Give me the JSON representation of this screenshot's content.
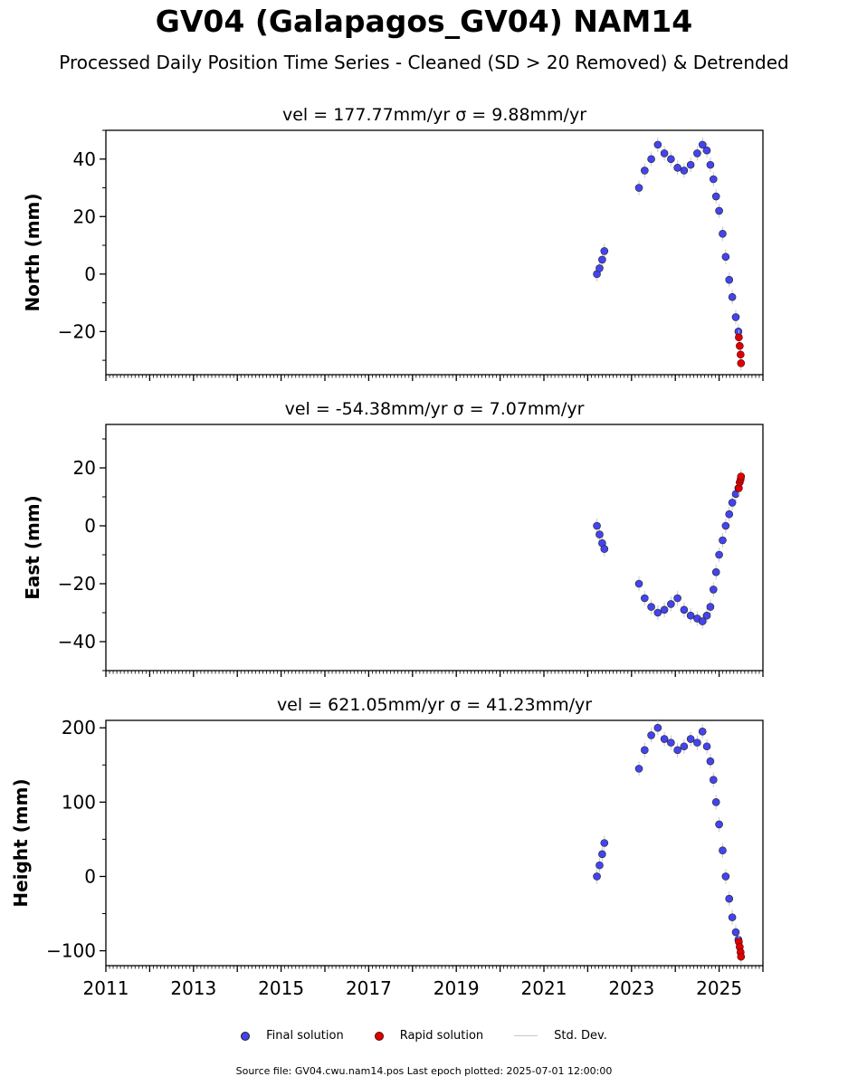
{
  "header": {
    "title": "GV04 (Galapagos_GV04) NAM14",
    "subtitle": "Processed Daily Position Time Series - Cleaned (SD > 20 Removed) & Detrended"
  },
  "legend": {
    "final_label": "Final solution",
    "rapid_label": "Rapid solution",
    "std_label": "Std. Dev."
  },
  "footer": {
    "source": "Source file: GV04.cwu.nam14.pos  Last epoch plotted: 2025-07-01 12:00:00"
  },
  "colors": {
    "final": "#4444ee",
    "rapid": "#dd0000",
    "std": "#c8c8c8"
  },
  "chart_data": [
    {
      "type": "scatter",
      "title": "vel = 177.77mm/yr   σ = 9.88mm/yr",
      "ylabel": "North (mm)",
      "xlim": [
        2011.0,
        2026.0
      ],
      "ylim": [
        -35,
        50
      ],
      "yticks": [
        -20,
        0,
        20,
        40
      ],
      "ytick_labels": [
        "−20",
        "0",
        "20",
        "40"
      ],
      "xtick_labels": [],
      "series": [
        {
          "name": "Final solution",
          "x": [
            2022.21,
            2022.27,
            2022.33,
            2022.38,
            2023.17,
            2023.3,
            2023.45,
            2023.6,
            2023.75,
            2023.9,
            2024.05,
            2024.2,
            2024.35,
            2024.5,
            2024.62,
            2024.72,
            2024.8,
            2024.87,
            2024.93,
            2025.0,
            2025.08,
            2025.15,
            2025.23,
            2025.3,
            2025.38,
            2025.44
          ],
          "y": [
            0,
            2,
            5,
            8,
            30,
            36,
            40,
            45,
            42,
            40,
            37,
            36,
            38,
            42,
            45,
            43,
            38,
            33,
            27,
            22,
            14,
            6,
            -2,
            -8,
            -15,
            -20
          ]
        },
        {
          "name": "Rapid solution",
          "x": [
            2025.45,
            2025.47,
            2025.49,
            2025.5
          ],
          "y": [
            -22,
            -25,
            -28,
            -31
          ]
        }
      ]
    },
    {
      "type": "scatter",
      "title": "vel = -54.38mm/yr   σ = 7.07mm/yr",
      "ylabel": "East (mm)",
      "xlim": [
        2011.0,
        2026.0
      ],
      "ylim": [
        -50,
        35
      ],
      "yticks": [
        -40,
        -20,
        0,
        20
      ],
      "ytick_labels": [
        "−40",
        "−20",
        "0",
        "20"
      ],
      "xtick_labels": [],
      "series": [
        {
          "name": "Final solution",
          "x": [
            2022.21,
            2022.27,
            2022.33,
            2022.38,
            2023.17,
            2023.3,
            2023.45,
            2023.6,
            2023.75,
            2023.9,
            2024.05,
            2024.2,
            2024.35,
            2024.5,
            2024.62,
            2024.72,
            2024.8,
            2024.87,
            2024.93,
            2025.0,
            2025.08,
            2025.15,
            2025.23,
            2025.3,
            2025.38,
            2025.44
          ],
          "y": [
            0,
            -3,
            -6,
            -8,
            -20,
            -25,
            -28,
            -30,
            -29,
            -27,
            -25,
            -29,
            -31,
            -32,
            -33,
            -31,
            -28,
            -22,
            -16,
            -10,
            -5,
            0,
            4,
            8,
            11,
            13
          ]
        },
        {
          "name": "Rapid solution",
          "x": [
            2025.45,
            2025.47,
            2025.49,
            2025.5
          ],
          "y": [
            13,
            15,
            16,
            17
          ]
        }
      ]
    },
    {
      "type": "scatter",
      "title": "vel = 621.05mm/yr   σ = 41.23mm/yr",
      "ylabel": "Height (mm)",
      "xlim": [
        2011.0,
        2026.0
      ],
      "ylim": [
        -120,
        210
      ],
      "yticks": [
        -100,
        0,
        100,
        200
      ],
      "ytick_labels": [
        "−100",
        "0",
        "100",
        "200"
      ],
      "xtick_values": [
        2011,
        2013,
        2015,
        2017,
        2019,
        2021,
        2023,
        2025
      ],
      "xtick_labels": [
        "2011",
        "2013",
        "2015",
        "2017",
        "2019",
        "2021",
        "2023",
        "2025"
      ],
      "series": [
        {
          "name": "Final solution",
          "x": [
            2022.21,
            2022.27,
            2022.33,
            2022.38,
            2023.17,
            2023.3,
            2023.45,
            2023.6,
            2023.75,
            2023.9,
            2024.05,
            2024.2,
            2024.35,
            2024.5,
            2024.62,
            2024.72,
            2024.8,
            2024.87,
            2024.93,
            2025.0,
            2025.08,
            2025.15,
            2025.23,
            2025.3,
            2025.38,
            2025.44
          ],
          "y": [
            0,
            15,
            30,
            45,
            145,
            170,
            190,
            200,
            185,
            180,
            170,
            175,
            185,
            180,
            195,
            175,
            155,
            130,
            100,
            70,
            35,
            0,
            -30,
            -55,
            -75,
            -85
          ]
        },
        {
          "name": "Rapid solution",
          "x": [
            2025.45,
            2025.47,
            2025.49,
            2025.5
          ],
          "y": [
            -88,
            -95,
            -102,
            -108
          ]
        }
      ]
    }
  ]
}
